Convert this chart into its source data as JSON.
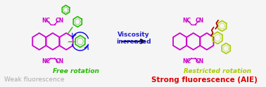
{
  "bg_color": "#f5f5f5",
  "title": "",
  "left_label_top": "Free rotation",
  "left_label_top_color": "#22bb00",
  "left_label_bottom": "Weak fluorescence",
  "left_label_bottom_color": "#aaaaaa",
  "arrow_label_top": "Viscosity",
  "arrow_label_bottom": "increased",
  "arrow_label_color": "#2222cc",
  "right_label_top": "Restricted rotation",
  "right_label_top_color": "#aacc00",
  "right_label_bottom": "Strong fluorescence (AIE)",
  "right_label_bottom_color": "#dd0000",
  "nc_cn_color": "#cc00cc",
  "ring_color_left": "#cc00cc",
  "ring_color_right_free": "#22bb00",
  "ring_color_right_restricted": "#aacc00",
  "figsize": [
    3.78,
    1.24
  ],
  "dpi": 100
}
